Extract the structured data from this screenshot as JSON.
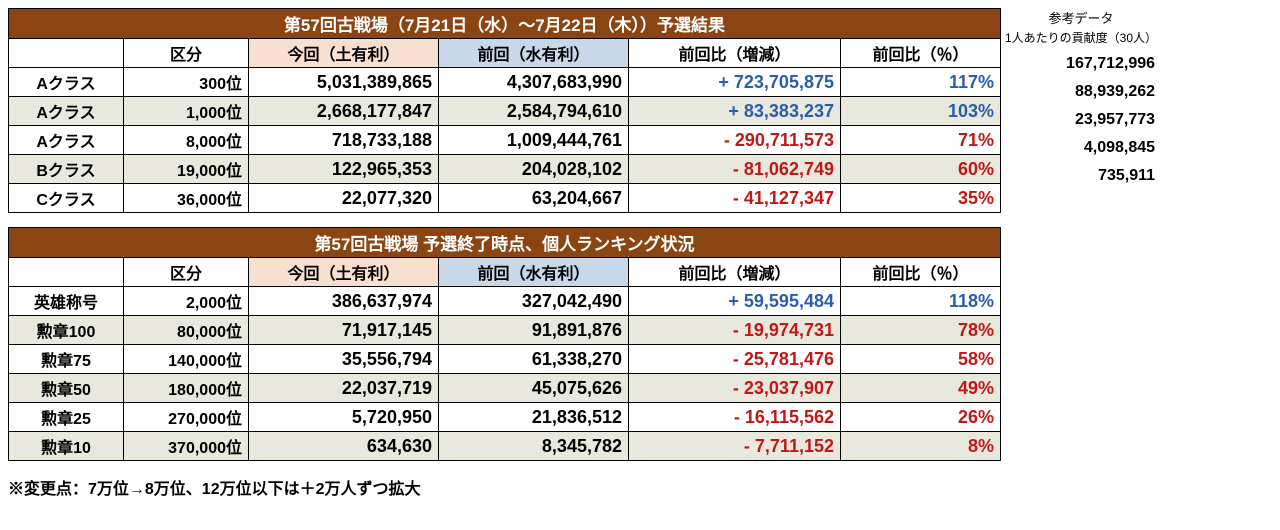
{
  "colors": {
    "title_bg": "#8b4513",
    "title_fg": "#ffffff",
    "peach_bg": "#f8e0d0",
    "blue_bg": "#c8d8e8",
    "stripe_bg": "#e8e8dc",
    "pos": "#2a5db0",
    "neg": "#c01818",
    "border": "#000000"
  },
  "side": {
    "header": "参考データ",
    "sub": "1人あたりの貢献度（30人）",
    "values": [
      "167,712,996",
      "88,939,262",
      "23,957,773",
      "4,098,845",
      "735,911"
    ]
  },
  "table1": {
    "title": "第57回古戦場（7月21日（水）～7月22日（木））予選結果",
    "headers": [
      "",
      "区分",
      "今回（土有利）",
      "前回（水有利）",
      "前回比（増減）",
      "前回比（％）"
    ],
    "rows": [
      {
        "label": "Aクラス",
        "rank": "300位",
        "now": "5,031,389,865",
        "prev": "4,307,683,990",
        "diff": "+ 723,705,875",
        "sign": "pos",
        "pct": "117%",
        "stripe": false
      },
      {
        "label": "Aクラス",
        "rank": "1,000位",
        "now": "2,668,177,847",
        "prev": "2,584,794,610",
        "diff": "+ 83,383,237",
        "sign": "pos",
        "pct": "103%",
        "stripe": true
      },
      {
        "label": "Aクラス",
        "rank": "8,000位",
        "now": "718,733,188",
        "prev": "1,009,444,761",
        "diff": "- 290,711,573",
        "sign": "neg",
        "pct": "71%",
        "stripe": false
      },
      {
        "label": "Bクラス",
        "rank": "19,000位",
        "now": "122,965,353",
        "prev": "204,028,102",
        "diff": "- 81,062,749",
        "sign": "neg",
        "pct": "60%",
        "stripe": true
      },
      {
        "label": "Cクラス",
        "rank": "36,000位",
        "now": "22,077,320",
        "prev": "63,204,667",
        "diff": "- 41,127,347",
        "sign": "neg",
        "pct": "35%",
        "stripe": false
      }
    ]
  },
  "table2": {
    "title": "第57回古戦場 予選終了時点、個人ランキング状況",
    "headers": [
      "",
      "区分",
      "今回（土有利）",
      "前回（水有利）",
      "前回比（増減）",
      "前回比（％）"
    ],
    "rows": [
      {
        "label": "英雄称号",
        "rank": "2,000位",
        "now": "386,637,974",
        "prev": "327,042,490",
        "diff": "+ 59,595,484",
        "sign": "pos",
        "pct": "118%",
        "stripe": false
      },
      {
        "label": "勲章100",
        "rank": "80,000位",
        "now": "71,917,145",
        "prev": "91,891,876",
        "diff": "- 19,974,731",
        "sign": "neg",
        "pct": "78%",
        "stripe": true
      },
      {
        "label": "勲章75",
        "rank": "140,000位",
        "now": "35,556,794",
        "prev": "61,338,270",
        "diff": "- 25,781,476",
        "sign": "neg",
        "pct": "58%",
        "stripe": false
      },
      {
        "label": "勲章50",
        "rank": "180,000位",
        "now": "22,037,719",
        "prev": "45,075,626",
        "diff": "- 23,037,907",
        "sign": "neg",
        "pct": "49%",
        "stripe": true
      },
      {
        "label": "勲章25",
        "rank": "270,000位",
        "now": "5,720,950",
        "prev": "21,836,512",
        "diff": "- 16,115,562",
        "sign": "neg",
        "pct": "26%",
        "stripe": false
      },
      {
        "label": "勲章10",
        "rank": "370,000位",
        "now": "634,630",
        "prev": "8,345,782",
        "diff": "- 7,711,152",
        "sign": "neg",
        "pct": "8%",
        "stripe": true
      }
    ]
  },
  "footnote": "※変更点：7万位→8万位、12万位以下は＋2万人ずつ拡大"
}
